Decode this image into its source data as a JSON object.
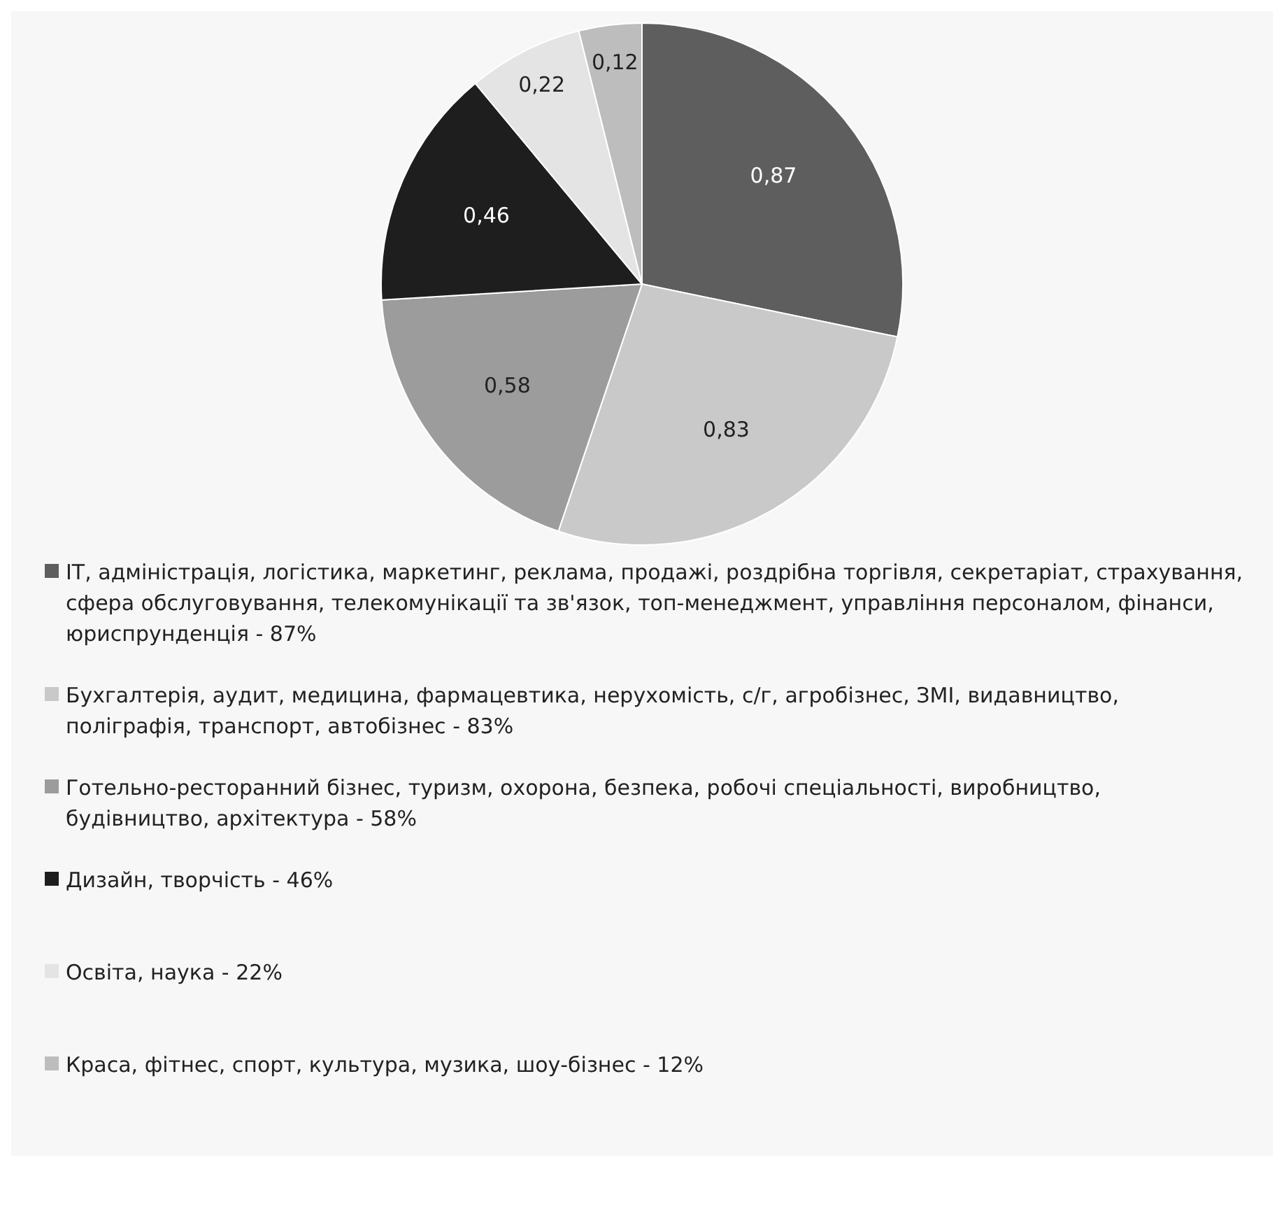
{
  "chart_data": {
    "type": "pie",
    "categories": [
      "IT, адміністрація, логістика, маркетинг, реклама, продажі, роздрібна торгівля, секретаріат, страхування, сфера обслуговування, телекомунікації та зв'язок, топ-менеджмент, управління персоналом, фінанси, юриспрунденція - 87%",
      "Бухгалтерія, аудит, медицина, фармацевтика, нерухомість, с/г, агробізнес, ЗМІ, видавництво, поліграфія, транспорт, автобізнес - 83%",
      "Готельно-ресторанний бізнес, туризм, охорона, безпека, робочі спеціальності, виробництво, будівництво, архітектура - 58%",
      "Дизайн, творчість - 46%",
      "Освіта, наука - 22%",
      "Краса, фітнес, спорт, культура, музика, шоу-бізнес - 12%"
    ],
    "values": [
      0.87,
      0.83,
      0.58,
      0.46,
      0.22,
      0.12
    ],
    "colors": [
      "#5e5e5e",
      "#c9c9c9",
      "#9c9c9c",
      "#1e1e1e",
      "#e4e4e4",
      "#bdbdbd"
    ],
    "value_labels": [
      "0,87",
      "0,83",
      "0,58",
      "0,46",
      "0,22",
      "0,12"
    ],
    "legend": "bottom"
  }
}
